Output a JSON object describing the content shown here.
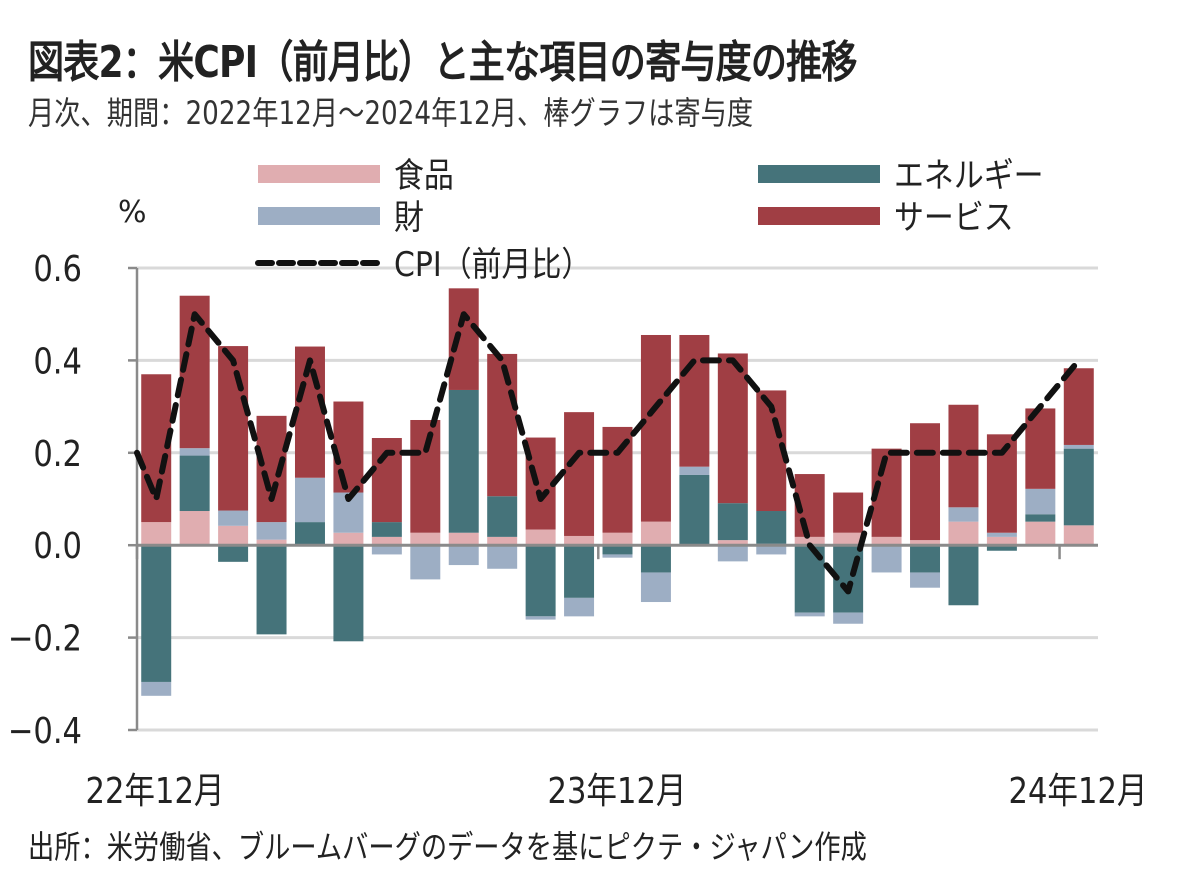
{
  "header": {
    "title": "図表2：米CPI（前月比）と主な項目の寄与度の推移",
    "subtitle": "月次、期間：2022年12月～2024年12月、棒グラフは寄与度"
  },
  "footer": {
    "source": "出所：米労働省、ブルームバーグのデータを基にピクテ・ジャパン作成"
  },
  "chart_data": {
    "type": "bar",
    "stacked": true,
    "title": "米CPI（前月比）と主な項目の寄与度の推移",
    "ylabel": "%",
    "xlabel": "",
    "ylim": [
      -0.4,
      0.6
    ],
    "yticks": [
      0.6,
      0.4,
      0.2,
      0.0,
      -0.2,
      -0.4
    ],
    "ytick_labels": [
      "0.6",
      "0.4",
      "0.2",
      "0.0",
      "−0.2",
      "−0.4"
    ],
    "grid": true,
    "xtick_labels": [
      {
        "label": "22年12月",
        "index": 0
      },
      {
        "label": "23年12月",
        "index": 12
      },
      {
        "label": "24年12月",
        "index": 24
      }
    ],
    "categories": [
      "2022-12",
      "2023-01",
      "2023-02",
      "2023-03",
      "2023-04",
      "2023-05",
      "2023-06",
      "2023-07",
      "2023-08",
      "2023-09",
      "2023-10",
      "2023-11",
      "2023-12",
      "2024-01",
      "2024-02",
      "2024-03",
      "2024-04",
      "2024-05",
      "2024-06",
      "2024-07",
      "2024-08",
      "2024-09",
      "2024-10",
      "2024-11",
      "2024-12"
    ],
    "legend_position": "top",
    "series": [
      {
        "name": "食品",
        "key": "food",
        "color": "#e0adb0",
        "values": [
          0.05,
          0.074,
          0.042,
          0.012,
          0.0,
          0.027,
          0.018,
          0.027,
          0.027,
          0.018,
          0.034,
          0.02,
          0.027,
          0.051,
          0.0,
          0.011,
          0.003,
          0.018,
          0.027,
          0.018,
          0.011,
          0.051,
          0.018,
          0.051,
          0.043
        ]
      },
      {
        "name": "エネルギー",
        "key": "energy",
        "color": "#45737a",
        "values": [
          -0.296,
          0.12,
          -0.036,
          -0.193,
          0.05,
          -0.208,
          0.032,
          0.0,
          0.309,
          0.088,
          -0.154,
          -0.114,
          -0.02,
          -0.059,
          0.152,
          0.08,
          0.071,
          -0.146,
          -0.146,
          0.0,
          -0.059,
          -0.13,
          -0.012,
          0.016,
          0.166
        ]
      },
      {
        "name": "財",
        "key": "goods",
        "color": "#9daec4",
        "values": [
          -0.03,
          0.016,
          0.033,
          0.038,
          0.096,
          0.087,
          -0.02,
          -0.074,
          -0.043,
          -0.051,
          -0.007,
          -0.04,
          -0.007,
          -0.064,
          0.018,
          -0.035,
          -0.02,
          -0.008,
          -0.024,
          -0.059,
          -0.033,
          0.031,
          0.009,
          0.055,
          0.008
        ]
      },
      {
        "name": "サービス",
        "key": "services",
        "color": "#a03e44",
        "values": [
          0.32,
          0.33,
          0.356,
          0.23,
          0.284,
          0.197,
          0.182,
          0.244,
          0.22,
          0.308,
          0.199,
          0.268,
          0.229,
          0.404,
          0.285,
          0.324,
          0.261,
          0.136,
          0.087,
          0.191,
          0.253,
          0.222,
          0.213,
          0.174,
          0.166
        ]
      }
    ],
    "line": {
      "name": "CPI（前月比）",
      "color": "#111111",
      "style": "dashed",
      "start_value": 0.2,
      "values": [
        0.1,
        0.5,
        0.4,
        0.1,
        0.4,
        0.1,
        0.2,
        0.2,
        0.5,
        0.4,
        0.1,
        0.2,
        0.2,
        0.3,
        0.4,
        0.4,
        0.3,
        0.0,
        -0.1,
        0.2,
        0.2,
        0.2,
        0.2,
        0.3,
        0.4
      ]
    }
  }
}
